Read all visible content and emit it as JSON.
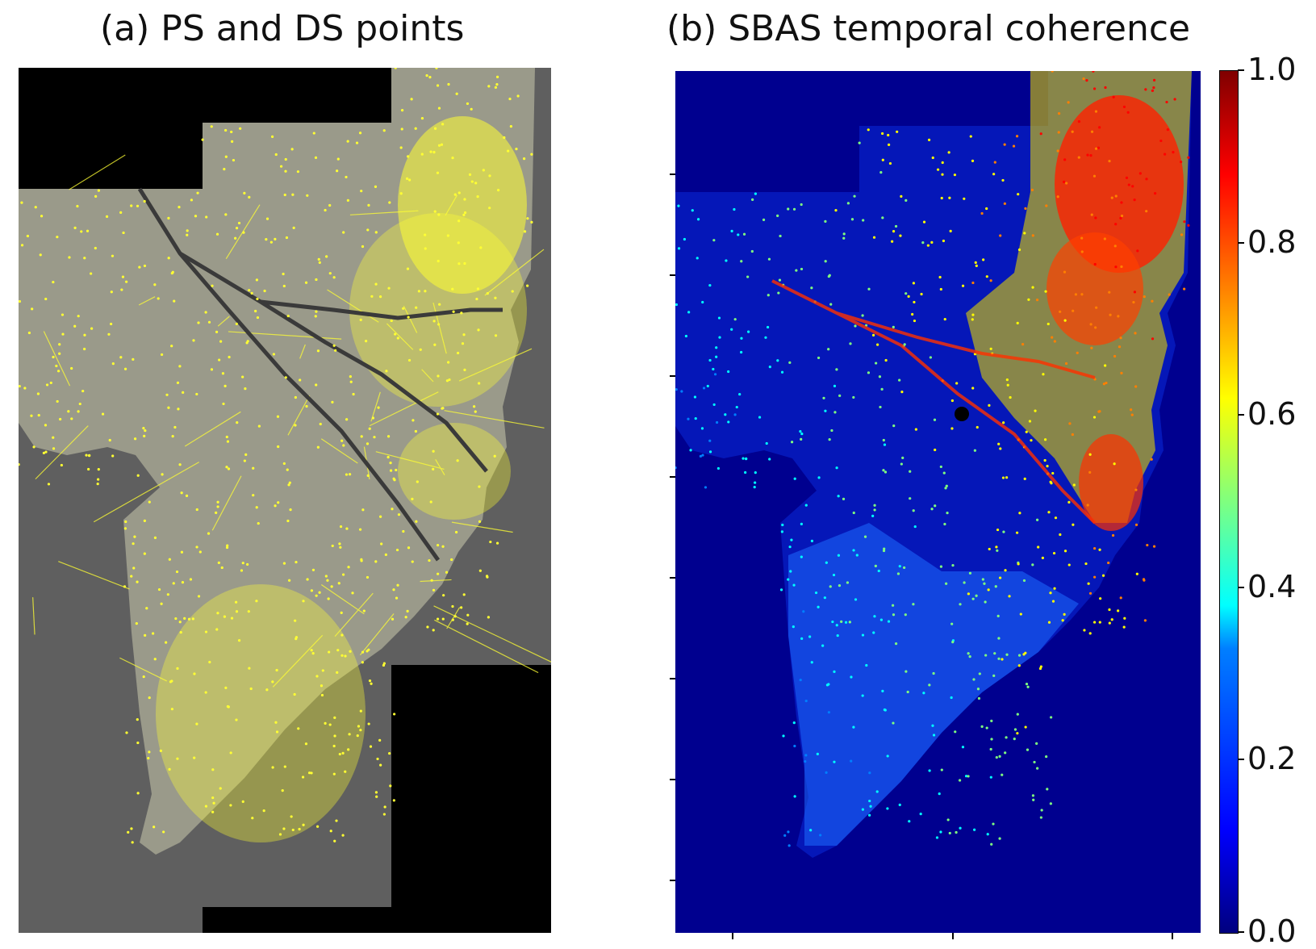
{
  "panels": {
    "a": {
      "title": "(a) PS and DS points",
      "point_color": "#ffff33",
      "background_color": "#6a6a6a",
      "nodata_color": "#000000"
    },
    "b": {
      "title": "(b) SBAS temporal coherence",
      "nodata_color": "#00008f"
    }
  },
  "colorbar": {
    "colormap": "jet",
    "min": 0.0,
    "max": 1.0,
    "tick_labels": [
      "1.0",
      "0.8",
      "0.6",
      "0.4",
      "0.2",
      "0.0"
    ],
    "tick_values": [
      1.0,
      0.8,
      0.6,
      0.4,
      0.2,
      0.0
    ]
  }
}
